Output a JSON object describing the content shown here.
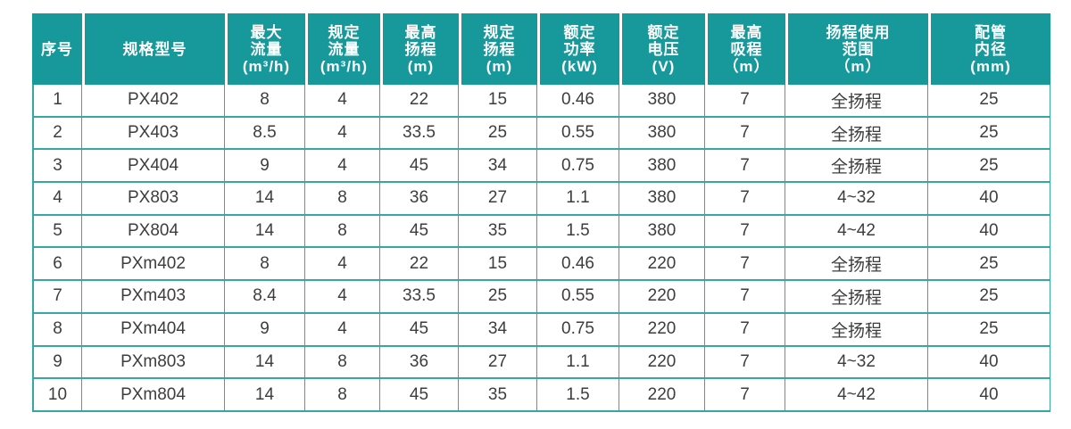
{
  "colors": {
    "header_bg": "#17999c",
    "header_text": "#ffffff",
    "grid_border": "#35a7a9",
    "cell_text": "#3d3d3d",
    "page_bg": "#ffffff"
  },
  "table": {
    "columns": [
      {
        "id": "index",
        "lines": [
          "序号"
        ]
      },
      {
        "id": "model",
        "lines": [
          "规格型号"
        ]
      },
      {
        "id": "max_flow",
        "lines": [
          "最大",
          "流量",
          "(m³/h)"
        ]
      },
      {
        "id": "rated_flow",
        "lines": [
          "规定",
          "流量",
          "(m³/h)"
        ]
      },
      {
        "id": "max_head",
        "lines": [
          "最高",
          "扬程",
          "(m)"
        ]
      },
      {
        "id": "rated_head",
        "lines": [
          "规定",
          "扬程",
          "(m)"
        ]
      },
      {
        "id": "rated_power",
        "lines": [
          "额定",
          "功率",
          "(kW)"
        ]
      },
      {
        "id": "rated_voltage",
        "lines": [
          "额定",
          "电压",
          "(V)"
        ]
      },
      {
        "id": "max_suction",
        "lines": [
          "最高",
          "吸程",
          "（m）"
        ]
      },
      {
        "id": "head_range",
        "lines": [
          "扬程使用",
          "范围",
          "（m）"
        ]
      },
      {
        "id": "pipe_diameter",
        "lines": [
          "配管",
          "内径",
          "(mm)"
        ]
      }
    ],
    "rows": [
      {
        "index": "1",
        "model": "PX402",
        "max_flow": "8",
        "rated_flow": "4",
        "max_head": "22",
        "rated_head": "15",
        "rated_power": "0.46",
        "rated_voltage": "380",
        "max_suction": "7",
        "head_range": "全扬程",
        "pipe_diameter": "25"
      },
      {
        "index": "2",
        "model": "PX403",
        "max_flow": "8.5",
        "rated_flow": "4",
        "max_head": "33.5",
        "rated_head": "25",
        "rated_power": "0.55",
        "rated_voltage": "380",
        "max_suction": "7",
        "head_range": "全扬程",
        "pipe_diameter": "25"
      },
      {
        "index": "3",
        "model": "PX404",
        "max_flow": "9",
        "rated_flow": "4",
        "max_head": "45",
        "rated_head": "34",
        "rated_power": "0.75",
        "rated_voltage": "380",
        "max_suction": "7",
        "head_range": "全扬程",
        "pipe_diameter": "25"
      },
      {
        "index": "4",
        "model": "PX803",
        "max_flow": "14",
        "rated_flow": "8",
        "max_head": "36",
        "rated_head": "27",
        "rated_power": "1.1",
        "rated_voltage": "380",
        "max_suction": "7",
        "head_range": "4~32",
        "pipe_diameter": "40"
      },
      {
        "index": "5",
        "model": "PX804",
        "max_flow": "14",
        "rated_flow": "8",
        "max_head": "45",
        "rated_head": "35",
        "rated_power": "1.5",
        "rated_voltage": "380",
        "max_suction": "7",
        "head_range": "4~42",
        "pipe_diameter": "40"
      },
      {
        "index": "6",
        "model": "PXm402",
        "max_flow": "8",
        "rated_flow": "4",
        "max_head": "22",
        "rated_head": "15",
        "rated_power": "0.46",
        "rated_voltage": "220",
        "max_suction": "7",
        "head_range": "全扬程",
        "pipe_diameter": "25"
      },
      {
        "index": "7",
        "model": "PXm403",
        "max_flow": "8.4",
        "rated_flow": "4",
        "max_head": "33.5",
        "rated_head": "25",
        "rated_power": "0.55",
        "rated_voltage": "220",
        "max_suction": "7",
        "head_range": "全扬程",
        "pipe_diameter": "25"
      },
      {
        "index": "8",
        "model": "PXm404",
        "max_flow": "9",
        "rated_flow": "4",
        "max_head": "45",
        "rated_head": "34",
        "rated_power": "0.75",
        "rated_voltage": "220",
        "max_suction": "7",
        "head_range": "全扬程",
        "pipe_diameter": "25"
      },
      {
        "index": "9",
        "model": "PXm803",
        "max_flow": "14",
        "rated_flow": "8",
        "max_head": "36",
        "rated_head": "27",
        "rated_power": "1.1",
        "rated_voltage": "220",
        "max_suction": "7",
        "head_range": "4~32",
        "pipe_diameter": "40"
      },
      {
        "index": "10",
        "model": "PXm804",
        "max_flow": "14",
        "rated_flow": "8",
        "max_head": "45",
        "rated_head": "35",
        "rated_power": "1.5",
        "rated_voltage": "220",
        "max_suction": "7",
        "head_range": "4~42",
        "pipe_diameter": "40"
      }
    ]
  }
}
